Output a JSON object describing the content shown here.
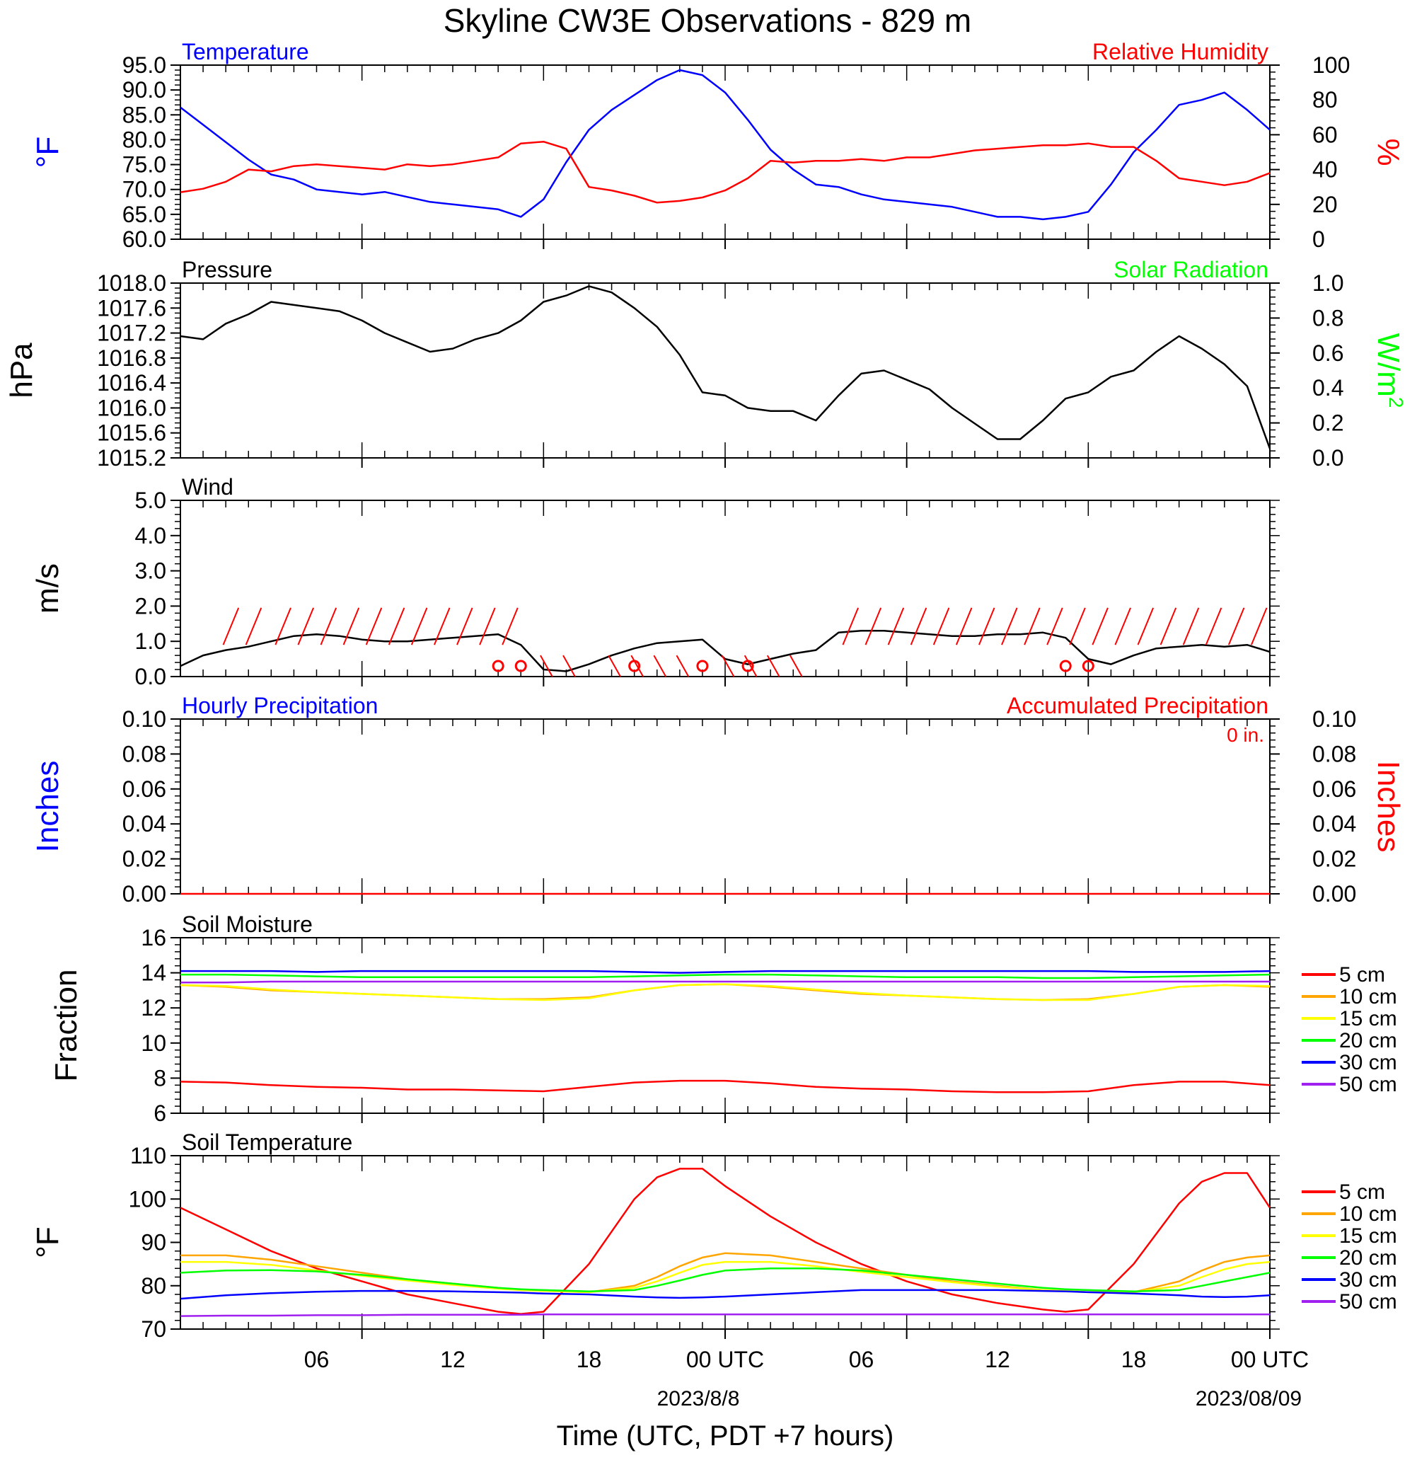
{
  "title": "Skyline CW3E Observations - 829 m",
  "time_axis": {
    "tick_labels": [
      "06",
      "12",
      "18",
      "00 UTC",
      "06",
      "12",
      "18",
      "00 UTC"
    ],
    "date_labels": [
      "2023/8/8",
      "2023/08/09"
    ],
    "xlabel": "Time (UTC, PDT +7 hours)"
  },
  "legend_soil": [
    "5 cm",
    "10 cm",
    "15 cm",
    "20 cm",
    "30 cm",
    "50 cm"
  ],
  "colors": {
    "temperature": "#0000ff",
    "humidity": "#ff0000",
    "pressure": "#000000",
    "solar": "#00ff00",
    "wind": "#000000",
    "barb": "#ff0000",
    "5 cm": "#ff0000",
    "10 cm": "#ffa500",
    "15 cm": "#ffff00",
    "20 cm": "#00ff00",
    "30 cm": "#0000ff",
    "50 cm": "#a020f0"
  },
  "chart_data": [
    {
      "type": "line",
      "panel": "temperature-humidity",
      "left_title": "Temperature",
      "right_title": "Relative Humidity",
      "ylabel_left": "°F",
      "ylabel_right": "%",
      "ylim_left": [
        60,
        95
      ],
      "ylim_right": [
        0,
        100
      ],
      "left_ticks": [
        "95.0",
        "90.0",
        "85.0",
        "80.0",
        "75.0",
        "70.0",
        "65.0",
        "60.0"
      ],
      "right_ticks": [
        "100",
        "80",
        "60",
        "40",
        "20",
        "0"
      ],
      "x_hours": [
        0,
        1,
        2,
        3,
        4,
        5,
        6,
        7,
        8,
        9,
        10,
        11,
        12,
        13,
        14,
        15,
        16,
        17,
        18,
        19,
        20,
        21,
        22,
        23,
        24,
        25,
        26,
        27,
        28,
        29,
        30,
        31,
        32,
        33,
        34,
        35,
        36,
        37,
        38,
        39,
        40,
        41,
        42,
        43,
        44,
        45,
        46,
        47,
        48
      ],
      "series": [
        {
          "name": "Temperature",
          "axis": "left",
          "values": [
            86.5,
            83,
            79.5,
            76,
            73,
            72,
            70,
            69.5,
            69,
            69.5,
            68.5,
            67.5,
            67,
            66.5,
            66,
            64.5,
            68,
            75.5,
            82,
            86,
            89,
            92,
            94,
            93,
            89.5,
            84,
            78,
            74,
            71,
            70.5,
            69,
            68,
            67.5,
            67,
            66.5,
            65.5,
            64.5,
            64.5,
            64,
            64.5,
            65.5,
            71,
            77.5,
            82,
            87,
            88,
            89.5,
            86,
            82
          ]
        },
        {
          "name": "Relative Humidity",
          "axis": "right",
          "values": [
            27,
            29,
            33,
            40,
            39,
            42,
            43,
            42,
            41,
            40,
            43,
            42,
            43,
            45,
            47,
            55,
            56,
            52,
            30,
            28,
            25,
            21,
            22,
            24,
            28,
            35,
            45,
            44,
            45,
            45,
            46,
            45,
            47,
            47,
            49,
            51,
            52,
            53,
            54,
            54,
            55,
            53,
            53,
            45,
            35,
            33,
            31,
            33,
            38
          ]
        }
      ]
    },
    {
      "type": "line",
      "panel": "pressure-solar",
      "left_title": "Pressure",
      "right_title": "Solar Radiation",
      "ylabel_left": "hPa",
      "ylabel_right": "W/m",
      "ylabel_right_sup": "2",
      "ylim_left": [
        1015.2,
        1018.0
      ],
      "ylim_right": [
        0,
        1
      ],
      "left_ticks": [
        "1018.0",
        "1017.6",
        "1017.2",
        "1016.8",
        "1016.4",
        "1016.0",
        "1015.6",
        "1015.2"
      ],
      "right_ticks": [
        "1.0",
        "0.8",
        "0.6",
        "0.4",
        "0.2",
        "0.0"
      ],
      "x_hours": [
        0,
        1,
        2,
        3,
        4,
        5,
        6,
        7,
        8,
        9,
        10,
        11,
        12,
        13,
        14,
        15,
        16,
        17,
        18,
        19,
        20,
        21,
        22,
        23,
        24,
        25,
        26,
        27,
        28,
        29,
        30,
        31,
        32,
        33,
        34,
        35,
        36,
        37,
        38,
        39,
        40,
        41,
        42,
        43,
        44,
        45,
        46,
        47,
        48
      ],
      "series": [
        {
          "name": "Pressure",
          "axis": "left",
          "values": [
            1017.15,
            1017.1,
            1017.35,
            1017.5,
            1017.7,
            1017.65,
            1017.6,
            1017.55,
            1017.4,
            1017.2,
            1017.05,
            1016.9,
            1016.95,
            1017.1,
            1017.2,
            1017.4,
            1017.7,
            1017.8,
            1017.95,
            1017.85,
            1017.6,
            1017.3,
            1016.85,
            1016.25,
            1016.2,
            1016.0,
            1015.95,
            1015.95,
            1015.8,
            1016.2,
            1016.55,
            1016.6,
            1016.45,
            1016.3,
            1016.0,
            1015.75,
            1015.5,
            1015.5,
            1015.8,
            1016.15,
            1016.25,
            1016.5,
            1016.6,
            1016.9,
            1017.15,
            1016.95,
            1016.7,
            1016.35,
            1015.35
          ]
        },
        {
          "name": "Solar Radiation",
          "axis": "right",
          "values": [
            0,
            0,
            0,
            0,
            0,
            0,
            0,
            0,
            0,
            0,
            0,
            0,
            0,
            0,
            0,
            0,
            0,
            0,
            0,
            0,
            0,
            0,
            0,
            0,
            0,
            0,
            0,
            0,
            0,
            0,
            0,
            0,
            0,
            0,
            0,
            0,
            0,
            0,
            0,
            0,
            0,
            0,
            0,
            0,
            0,
            0,
            0,
            0,
            0
          ]
        }
      ]
    },
    {
      "type": "line",
      "panel": "wind",
      "left_title": "Wind",
      "ylabel_left": "m/s",
      "ylim_left": [
        0,
        5
      ],
      "left_ticks": [
        "5.0",
        "4.0",
        "3.0",
        "2.0",
        "1.0",
        "0.0"
      ],
      "x_hours": [
        0,
        1,
        2,
        3,
        4,
        5,
        6,
        7,
        8,
        9,
        10,
        11,
        12,
        13,
        14,
        15,
        16,
        17,
        18,
        19,
        20,
        21,
        22,
        23,
        24,
        25,
        26,
        27,
        28,
        29,
        30,
        31,
        32,
        33,
        34,
        35,
        36,
        37,
        38,
        39,
        40,
        41,
        42,
        43,
        44,
        45,
        46,
        47,
        48
      ],
      "series": [
        {
          "name": "Wind speed",
          "axis": "left",
          "values": [
            0.3,
            0.6,
            0.75,
            0.85,
            1.0,
            1.15,
            1.2,
            1.15,
            1.05,
            1.0,
            1.0,
            1.05,
            1.1,
            1.15,
            1.2,
            0.9,
            0.2,
            0.15,
            0.35,
            0.6,
            0.8,
            0.95,
            1.0,
            1.05,
            0.5,
            0.35,
            0.5,
            0.65,
            0.75,
            1.25,
            1.3,
            1.3,
            1.25,
            1.2,
            1.15,
            1.15,
            1.2,
            1.2,
            1.25,
            1.1,
            0.5,
            0.35,
            0.6,
            0.8,
            0.85,
            0.9,
            0.85,
            0.9,
            0.7
          ]
        }
      ],
      "barbs": {
        "hours": [
          2,
          3,
          4.3,
          5.3,
          6.3,
          7.3,
          8.3,
          9.3,
          10.3,
          11.3,
          12.3,
          13.3,
          14.3,
          16.3,
          17.3,
          19.3,
          20.3,
          21.3,
          22.3,
          24.3,
          25.3,
          26.3,
          27.3,
          29.3,
          30.3,
          31.3,
          32.3,
          33.3,
          34.3,
          35.3,
          36.3,
          37.3,
          38.3,
          39.3,
          40.3,
          41.3,
          42.3,
          43.3,
          44.3,
          45.3,
          46.3,
          47.3
        ],
        "calm_hours": [
          14,
          15,
          20,
          23,
          25,
          39,
          40
        ]
      }
    },
    {
      "type": "bar",
      "panel": "precipitation",
      "left_title": "Hourly Precipitation",
      "right_title": "Accumulated Precipitation",
      "annotation": "0 in.",
      "ylabel_left": "Inches",
      "ylabel_right": "Inches",
      "ylim_left": [
        0,
        0.1
      ],
      "ylim_right": [
        0,
        0.1
      ],
      "left_ticks": [
        "0.10",
        "0.08",
        "0.06",
        "0.04",
        "0.02",
        "0.00"
      ],
      "right_ticks": [
        "0.10",
        "0.08",
        "0.06",
        "0.04",
        "0.02",
        "0.00"
      ],
      "x_hours": [
        0,
        48
      ],
      "series": [
        {
          "name": "Accumulated Precipitation",
          "axis": "right",
          "values": [
            0,
            0
          ]
        }
      ]
    },
    {
      "type": "line",
      "panel": "soil-moisture",
      "left_title": "Soil Moisture",
      "ylabel_left": "Fraction",
      "ylim_left": [
        6,
        16
      ],
      "left_ticks": [
        "16",
        "14",
        "12",
        "10",
        "8",
        "6"
      ],
      "x_hours": [
        0,
        2,
        4,
        6,
        8,
        10,
        12,
        14,
        16,
        18,
        20,
        22,
        24,
        26,
        28,
        30,
        32,
        34,
        36,
        38,
        40,
        42,
        44,
        46,
        48
      ],
      "series": [
        {
          "name": "5 cm",
          "values": [
            7.8,
            7.75,
            7.6,
            7.5,
            7.45,
            7.35,
            7.35,
            7.3,
            7.25,
            7.5,
            7.75,
            7.85,
            7.85,
            7.7,
            7.5,
            7.4,
            7.35,
            7.25,
            7.2,
            7.2,
            7.25,
            7.6,
            7.8,
            7.8,
            7.6
          ]
        },
        {
          "name": "10 cm",
          "values": [
            13.3,
            13.2,
            13.0,
            12.9,
            12.8,
            12.7,
            12.6,
            12.5,
            12.5,
            12.6,
            13.0,
            13.3,
            13.35,
            13.2,
            13.0,
            12.8,
            12.7,
            12.6,
            12.5,
            12.45,
            12.5,
            12.8,
            13.2,
            13.3,
            13.2
          ]
        },
        {
          "name": "15 cm",
          "values": [
            13.3,
            13.25,
            13.05,
            12.9,
            12.8,
            12.7,
            12.6,
            12.5,
            12.45,
            12.55,
            13.0,
            13.3,
            13.35,
            13.25,
            13.05,
            12.85,
            12.7,
            12.6,
            12.5,
            12.45,
            12.45,
            12.8,
            13.2,
            13.3,
            13.25
          ]
        },
        {
          "name": "20 cm",
          "values": [
            13.9,
            13.9,
            13.85,
            13.8,
            13.75,
            13.75,
            13.75,
            13.75,
            13.75,
            13.75,
            13.8,
            13.85,
            13.9,
            13.9,
            13.85,
            13.8,
            13.75,
            13.75,
            13.75,
            13.7,
            13.7,
            13.75,
            13.8,
            13.85,
            13.9
          ]
        },
        {
          "name": "30 cm",
          "values": [
            14.1,
            14.1,
            14.1,
            14.05,
            14.1,
            14.1,
            14.1,
            14.1,
            14.1,
            14.1,
            14.05,
            14.0,
            14.05,
            14.1,
            14.1,
            14.1,
            14.1,
            14.1,
            14.1,
            14.1,
            14.1,
            14.05,
            14.05,
            14.05,
            14.1
          ]
        },
        {
          "name": "50 cm",
          "values": [
            13.45,
            13.45,
            13.5,
            13.5,
            13.5,
            13.5,
            13.5,
            13.5,
            13.5,
            13.5,
            13.5,
            13.5,
            13.5,
            13.5,
            13.5,
            13.5,
            13.5,
            13.5,
            13.5,
            13.5,
            13.5,
            13.5,
            13.5,
            13.5,
            13.5
          ]
        }
      ]
    },
    {
      "type": "line",
      "panel": "soil-temperature",
      "left_title": "Soil Temperature",
      "ylabel_left": "°F",
      "ylim_left": [
        70,
        110
      ],
      "left_ticks": [
        "110",
        "100",
        "90",
        "80",
        "70"
      ],
      "x_hours": [
        0,
        2,
        4,
        6,
        8,
        10,
        12,
        14,
        15,
        16,
        18,
        20,
        21,
        22,
        23,
        24,
        26,
        28,
        30,
        32,
        34,
        36,
        38,
        39,
        40,
        42,
        44,
        45,
        46,
        47,
        48
      ],
      "series": [
        {
          "name": "5 cm",
          "values": [
            98,
            93,
            88,
            84,
            81,
            78,
            76,
            74,
            73.5,
            74,
            85,
            100,
            105,
            107,
            107,
            103,
            96,
            90,
            85,
            81,
            78,
            76,
            74.5,
            74,
            74.5,
            85,
            99,
            104,
            106,
            106,
            98
          ]
        },
        {
          "name": "10 cm",
          "values": [
            87,
            87,
            86,
            84.5,
            83,
            81.5,
            80.5,
            79.5,
            79,
            78.8,
            78.5,
            80,
            82,
            84.5,
            86.5,
            87.5,
            87,
            85.5,
            84,
            82.5,
            81,
            80,
            79,
            78.8,
            78.5,
            78.5,
            81,
            83.5,
            85.5,
            86.5,
            87
          ]
        },
        {
          "name": "15 cm",
          "values": [
            85.5,
            85.5,
            84.8,
            83.5,
            82.3,
            81.2,
            80.2,
            79.3,
            79,
            78.8,
            78.5,
            79.5,
            81,
            83,
            84.8,
            85.5,
            85.5,
            84.5,
            83.2,
            82,
            80.8,
            79.8,
            79,
            78.8,
            78.5,
            78.5,
            80,
            82,
            83.8,
            85,
            85.5
          ]
        },
        {
          "name": "20 cm",
          "values": [
            83,
            83.5,
            83.6,
            83.3,
            82.5,
            81.5,
            80.5,
            79.5,
            79.2,
            79,
            78.7,
            79,
            80,
            81.2,
            82.5,
            83.5,
            84,
            84,
            83.5,
            82.5,
            81.5,
            80.5,
            79.5,
            79.2,
            79,
            78.7,
            79,
            80,
            81,
            82,
            83
          ]
        },
        {
          "name": "30 cm",
          "values": [
            77,
            77.8,
            78.3,
            78.6,
            78.8,
            78.8,
            78.7,
            78.5,
            78.4,
            78.2,
            78,
            77.5,
            77.3,
            77.2,
            77.3,
            77.5,
            78,
            78.5,
            79,
            79,
            79,
            79,
            78.8,
            78.7,
            78.5,
            78.2,
            77.8,
            77.5,
            77.4,
            77.5,
            77.8
          ]
        },
        {
          "name": "50 cm",
          "values": [
            73,
            73.1,
            73.1,
            73.2,
            73.2,
            73.3,
            73.3,
            73.3,
            73.3,
            73.4,
            73.4,
            73.4,
            73.4,
            73.4,
            73.4,
            73.4,
            73.4,
            73.4,
            73.4,
            73.4,
            73.4,
            73.4,
            73.4,
            73.4,
            73.4,
            73.4,
            73.4,
            73.4,
            73.4,
            73.4,
            73.4
          ]
        }
      ]
    }
  ]
}
